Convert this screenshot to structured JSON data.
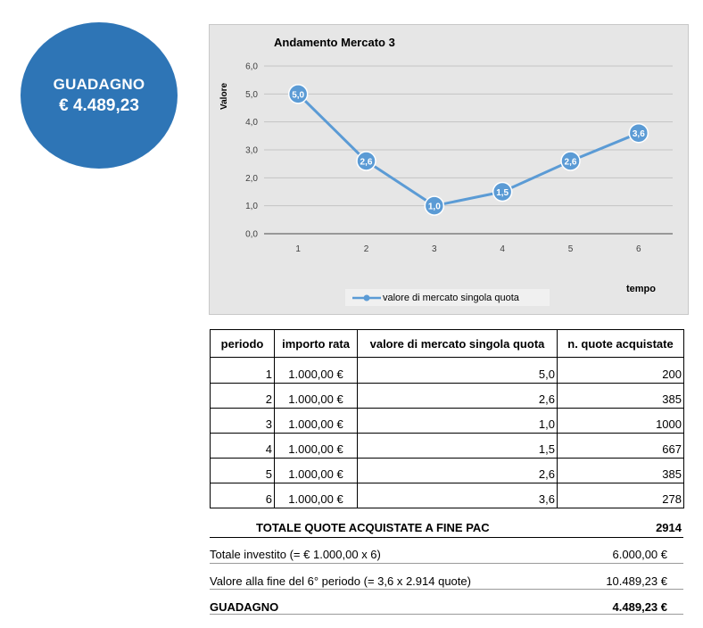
{
  "badge": {
    "label": "GUADAGNO",
    "amount": "€ 4.489,23"
  },
  "chart_data": {
    "type": "line",
    "title": "Andamento Mercato 3",
    "xlabel": "tempo",
    "ylabel": "Valore",
    "categories": [
      "1",
      "2",
      "3",
      "4",
      "5",
      "6"
    ],
    "series": [
      {
        "name": "valore di mercato singola quota",
        "values": [
          5.0,
          2.6,
          1.0,
          1.5,
          2.6,
          3.6
        ],
        "labels": [
          "5,0",
          "2,6",
          "1,0",
          "1,5",
          "2,6",
          "3,6"
        ]
      }
    ],
    "ylim": [
      0,
      6
    ],
    "yticks": [
      "0,0",
      "1,0",
      "2,0",
      "3,0",
      "4,0",
      "5,0",
      "6,0"
    ],
    "grid": true,
    "legend": "bottom",
    "color": "#5b9bd5",
    "background": "#e6e6e6"
  },
  "table": {
    "headers": [
      "periodo",
      "importo rata",
      "valore di mercato singola quota",
      "n. quote acquistate"
    ],
    "rows": [
      [
        "1",
        "1.000,00 €",
        "5,0",
        "200"
      ],
      [
        "2",
        "1.000,00 €",
        "2,6",
        "385"
      ],
      [
        "3",
        "1.000,00 €",
        "1,0",
        "1000"
      ],
      [
        "4",
        "1.000,00 €",
        "1,5",
        "667"
      ],
      [
        "5",
        "1.000,00 €",
        "2,6",
        "385"
      ],
      [
        "6",
        "1.000,00 €",
        "3,6",
        "278"
      ]
    ]
  },
  "summary": {
    "total_label": "TOTALE QUOTE ACQUISTATE A FINE PAC",
    "total_value": "2914",
    "invested_label": "Totale investito (= € 1.000,00 x 6)",
    "invested_value": "6.000,00 €",
    "final_label": "Valore alla fine del 6° periodo (= 3,6 x 2.914 quote)",
    "final_value": "10.489,23 €",
    "gain_label": "GUADAGNO",
    "gain_value": "4.489,23 €"
  }
}
